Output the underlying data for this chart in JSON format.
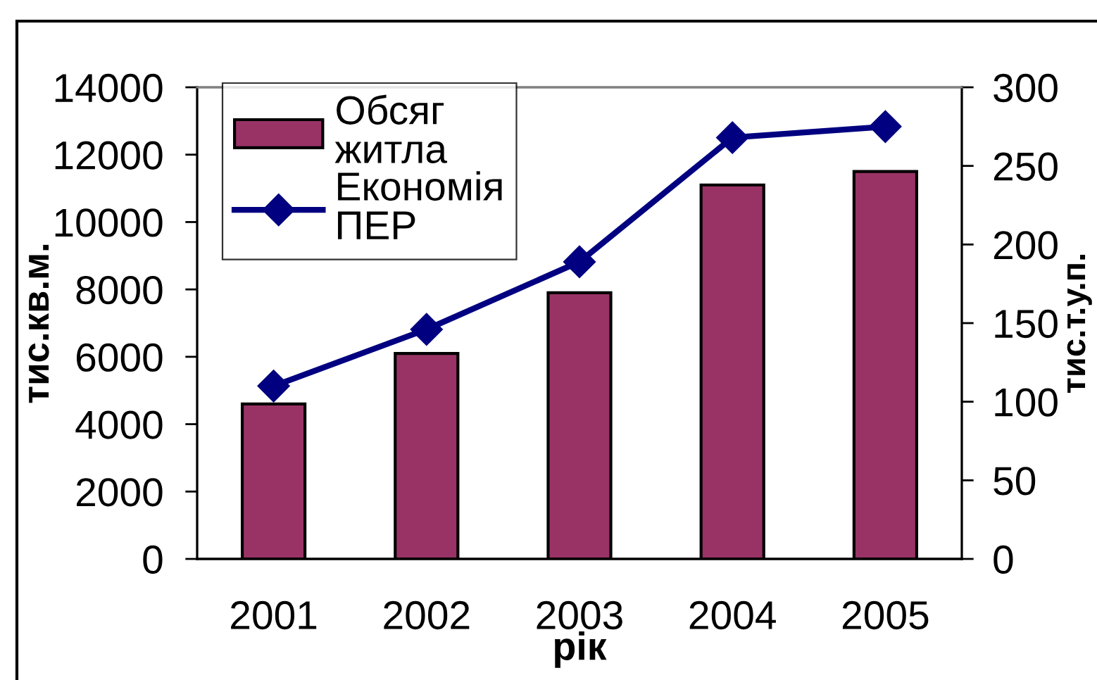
{
  "chart_data": {
    "type": "bar",
    "categories": [
      "2001",
      "2002",
      "2003",
      "2004",
      "2005"
    ],
    "xlabel": "рік",
    "ylabel": "тис.кв.м.",
    "y2label": "тис.т.у.п.",
    "series": [
      {
        "name": "Обсяг\nжитла",
        "color": "#993366",
        "values": [
          4600,
          6100,
          7900,
          11100,
          11500
        ]
      },
      {
        "name": "Економія\nПЕР",
        "type": "line",
        "axis": "y2",
        "color": "#000080",
        "marker": "diamond",
        "values": [
          110,
          146,
          189,
          268,
          275
        ]
      }
    ],
    "ylim": [
      0,
      14000
    ],
    "yticks": [
      0,
      2000,
      4000,
      6000,
      8000,
      10000,
      12000,
      14000
    ],
    "y2lim": [
      0,
      300
    ],
    "y2ticks": [
      0,
      50,
      100,
      150,
      200,
      250,
      300
    ],
    "legend": "top left",
    "grid": false
  }
}
